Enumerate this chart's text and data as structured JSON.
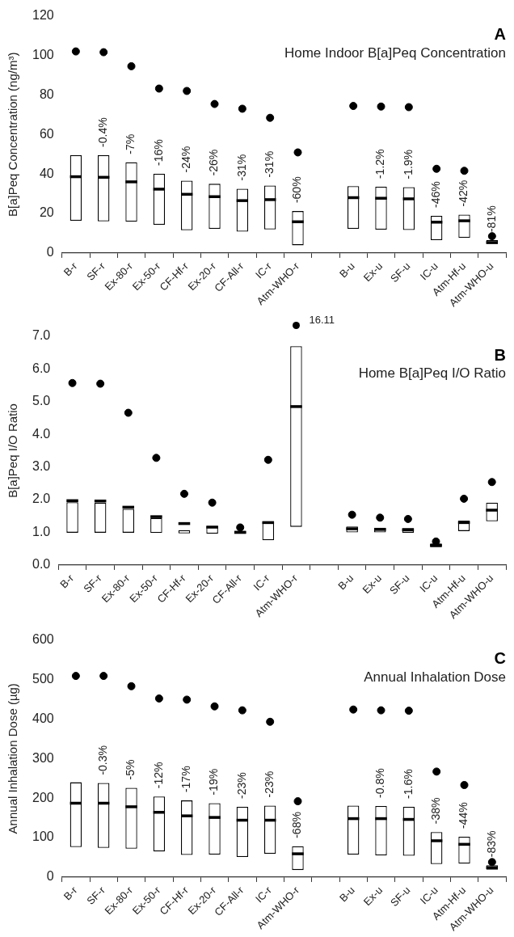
{
  "chart_data": [
    {
      "type": "box",
      "title": "A",
      "subtitle": "Home Indoor B[a]Peq Concentration",
      "ylabel": "B[a]Peq Concentration (ng/m³)",
      "categories": [
        "B-r",
        "SF-r",
        "Ex-80-r",
        "Ex-50-r",
        "CF-Hf-r",
        "Ex-20-r",
        "CF-All-r",
        "IC-r",
        "Atm-WHO-r",
        null,
        "B-u",
        "Ex-u",
        "SF-u",
        "IC-u",
        "Atm-Hf-u",
        "Atm-WHO-u"
      ],
      "ylim": [
        0,
        120
      ],
      "yticks": [
        0,
        20,
        40,
        60,
        80,
        100,
        120
      ],
      "grid": false,
      "legend": false,
      "series": [
        {
          "type": "box",
          "color": "#000000",
          "boxes": [
            {
              "low": 16.3,
              "q1": 16.3,
              "median": 38.6,
              "q3": 49.5,
              "high": 49.5
            },
            {
              "low": 16,
              "q1": 16,
              "median": 38.3,
              "q3": 49.5,
              "high": 49.5
            },
            {
              "low": 15.8,
              "q1": 15.8,
              "median": 36,
              "q3": 45.9,
              "high": 45.9
            },
            {
              "low": 14.3,
              "q1": 14.3,
              "median": 32.3,
              "q3": 40.1,
              "high": 40.1
            },
            {
              "low": 11.5,
              "q1": 11.5,
              "median": 29.7,
              "q3": 36.6,
              "high": 36.6
            },
            {
              "low": 12.2,
              "q1": 12.2,
              "median": 28.5,
              "q3": 35,
              "high": 35
            },
            {
              "low": 10.8,
              "q1": 10.8,
              "median": 26.5,
              "q3": 32.5,
              "high": 32.5
            },
            {
              "low": 11.9,
              "q1": 11.9,
              "median": 27,
              "q3": 34.1,
              "high": 34.1
            },
            {
              "low": 3.9,
              "q1": 3.9,
              "median": 15.8,
              "q3": 21.2,
              "high": 21.2
            },
            null,
            {
              "low": 12.2,
              "q1": 12.2,
              "median": 28,
              "q3": 33.8,
              "high": 33.8
            },
            {
              "low": 11.8,
              "q1": 11.8,
              "median": 27.7,
              "q3": 33.5,
              "high": 33.5
            },
            {
              "low": 11.6,
              "q1": 11.6,
              "median": 27.4,
              "q3": 33.3,
              "high": 33.3
            },
            {
              "low": 6.5,
              "q1": 6.5,
              "median": 15.6,
              "q3": 18.8,
              "high": 18.8
            },
            {
              "low": 7.6,
              "q1": 7.6,
              "median": 16.3,
              "q3": 19.4,
              "high": 19.4
            },
            {
              "low": 4.6,
              "q1": 4.6,
              "median": 5.3,
              "q3": 6.5,
              "high": 6.5
            }
          ],
          "value_labels": [
            null,
            "-0.4%",
            "-7%",
            "-16%",
            "-24%",
            "-26%",
            "-31%",
            "-31%",
            "-60%",
            null,
            null,
            "-1.2%",
            "-1.9%",
            "-46%",
            "-42%",
            "-81%"
          ]
        },
        {
          "type": "scatter",
          "color": "#000000",
          "marker": "circle",
          "x": [
            "B-r",
            "SF-r",
            "Ex-80-r",
            "Ex-50-r",
            "CF-Hf-r",
            "Ex-20-r",
            "CF-All-r",
            "IC-r",
            "Atm-WHO-r",
            null,
            "B-u",
            "Ex-u",
            "SF-u",
            "IC-u",
            "Atm-Hf-u",
            "Atm-WHO-u"
          ],
          "values": [
            102,
            101.6,
            94.5,
            83.2,
            82,
            75.4,
            73,
            68.4,
            50.9,
            null,
            74.4,
            74.1,
            73.8,
            42.6,
            41.6,
            8.5
          ]
        }
      ]
    },
    {
      "type": "box",
      "title": "B",
      "subtitle": "Home B[a]Peq I/O Ratio",
      "ylabel": "B[a]Peq I/O Ratio",
      "categories": [
        "B-r",
        "SF-r",
        "Ex-80-r",
        "Ex-50-r",
        "CF-Hf-r",
        "Ex-20-r",
        "CF-All-r",
        "IC-r",
        "Atm-WHO-r",
        null,
        "B-u",
        "Ex-u",
        "SF-u",
        "IC-u",
        "Atm-Hf-u",
        "Atm-WHO-u"
      ],
      "ylim": [
        0,
        7
      ],
      "yticks": [
        {
          "value": 0,
          "label": "0.0"
        },
        {
          "value": 1,
          "label": "1.0"
        },
        {
          "value": 2,
          "label": "2.0"
        },
        {
          "value": 3,
          "label": "3.0"
        },
        {
          "value": 4,
          "label": "4.0"
        },
        {
          "value": 5,
          "label": "5.0"
        },
        {
          "value": 6,
          "label": "6.0"
        },
        {
          "value": 7,
          "label": "7.0"
        }
      ],
      "grid": false,
      "legend": false,
      "series": [
        {
          "type": "box",
          "color": "#000000",
          "boxes": [
            {
              "low": 0.99,
              "q1": 0.99,
              "median": 1.97,
              "q3": 1.92,
              "high": 1.92
            },
            {
              "low": 0.99,
              "q1": 0.99,
              "median": 1.96,
              "q3": 1.91,
              "high": 1.91
            },
            {
              "low": 0.99,
              "q1": 0.99,
              "median": 1.77,
              "q3": 1.72,
              "high": 1.72
            },
            {
              "low": 0.98,
              "q1": 0.98,
              "median": 1.48,
              "q3": 1.44,
              "high": 1.44
            },
            {
              "low": 0.97,
              "q1": 0.97,
              "median": 1.27,
              "q3": 1.07,
              "high": 1.07
            },
            {
              "low": 0.96,
              "q1": 0.96,
              "median": 1.16,
              "q3": 1.2,
              "high": 1.2
            },
            {
              "low": 0.96,
              "q1": 0.96,
              "median": 1.0,
              "q3": 1.05,
              "high": 1.05
            },
            {
              "low": 0.76,
              "q1": 0.76,
              "median": 1.3,
              "q3": 1.33,
              "high": 1.33
            },
            {
              "low": 1.17,
              "q1": 1.17,
              "median": 4.85,
              "q3": 6.7,
              "high": 6.7
            },
            null,
            {
              "low": 1.0,
              "q1": 1.0,
              "median": 1.11,
              "q3": 1.18,
              "high": 1.18
            },
            {
              "low": 1.0,
              "q1": 1.0,
              "median": 1.09,
              "q3": 1.14,
              "high": 1.14
            },
            {
              "low": 0.99,
              "q1": 0.99,
              "median": 1.08,
              "q3": 1.13,
              "high": 1.13
            },
            {
              "low": 0.55,
              "q1": 0.55,
              "median": 0.6,
              "q3": 0.66,
              "high": 0.66
            },
            {
              "low": 1.04,
              "q1": 1.04,
              "median": 1.3,
              "q3": 1.36,
              "high": 1.36
            },
            {
              "low": 1.34,
              "q1": 1.34,
              "median": 1.68,
              "q3": 1.91,
              "high": 1.91
            }
          ]
        },
        {
          "type": "scatter",
          "color": "#000000",
          "marker": "circle",
          "x": [
            "B-r",
            "SF-r",
            "Ex-80-r",
            "Ex-50-r",
            "CF-Hf-r",
            "Ex-20-r",
            "CF-All-r",
            "IC-r",
            "Atm-WHO-r",
            null,
            "B-u",
            "Ex-u",
            "SF-u",
            "IC-u",
            "Atm-Hf-u",
            "Atm-WHO-u"
          ],
          "values": [
            5.57,
            5.55,
            4.66,
            3.28,
            2.18,
            1.91,
            1.15,
            3.22,
            null,
            null,
            1.54,
            1.45,
            1.41,
            0.72,
            2.03,
            2.54
          ]
        }
      ],
      "annotations": [
        "16.11"
      ]
    },
    {
      "type": "box",
      "title": "C",
      "subtitle": "Annual Inhalation Dose",
      "ylabel": "Annual Inhalation Dose (µg)",
      "categories": [
        "B-r",
        "SF-r",
        "Ex-80-r",
        "Ex-50-r",
        "CF-Hf-r",
        "Ex-20-r",
        "CF-All-r",
        "IC-r",
        "Atm-WHO-r",
        null,
        "B-u",
        "Ex-u",
        "SF-u",
        "IC-u",
        "Atm-Hf-u",
        "Atm-WHO-u"
      ],
      "ylim": [
        0,
        600
      ],
      "yticks": [
        0,
        100,
        200,
        300,
        400,
        500,
        600
      ],
      "grid": false,
      "legend": false,
      "series": [
        {
          "type": "box",
          "color": "#000000",
          "boxes": [
            {
              "low": 76,
              "q1": 76,
              "median": 187,
              "q3": 240,
              "high": 240
            },
            {
              "low": 74,
              "q1": 74,
              "median": 187,
              "q3": 238,
              "high": 238
            },
            {
              "low": 72,
              "q1": 72,
              "median": 178,
              "q3": 226,
              "high": 226
            },
            {
              "low": 65,
              "q1": 65,
              "median": 164,
              "q3": 204,
              "high": 204
            },
            {
              "low": 56,
              "q1": 56,
              "median": 155,
              "q3": 194,
              "high": 194
            },
            {
              "low": 57,
              "q1": 57,
              "median": 151,
              "q3": 187,
              "high": 187
            },
            {
              "low": 51,
              "q1": 51,
              "median": 144,
              "q3": 178,
              "high": 178
            },
            {
              "low": 59,
              "q1": 59,
              "median": 144,
              "q3": 181,
              "high": 181
            },
            {
              "low": 18,
              "q1": 18,
              "median": 59,
              "q3": 78,
              "high": 78
            },
            null,
            {
              "low": 57,
              "q1": 57,
              "median": 148,
              "q3": 181,
              "high": 181
            },
            {
              "low": 55,
              "q1": 55,
              "median": 148,
              "q3": 180,
              "high": 180
            },
            {
              "low": 54,
              "q1": 54,
              "median": 146,
              "q3": 178,
              "high": 178
            },
            {
              "low": 33,
              "q1": 33,
              "median": 92,
              "q3": 114,
              "high": 114
            },
            {
              "low": 34,
              "q1": 34,
              "median": 83,
              "q3": 102,
              "high": 102
            },
            {
              "low": 19,
              "q1": 19,
              "median": 24,
              "q3": 30,
              "high": 30
            }
          ],
          "value_labels": [
            null,
            "-0.3%",
            "-5%",
            "-12%",
            "-17%",
            "-19%",
            "-23%",
            "-23%",
            "-68%",
            null,
            null,
            "-0.8%",
            "-1.6%",
            "-38%",
            "-44%",
            "-83%"
          ]
        },
        {
          "type": "scatter",
          "color": "#000000",
          "marker": "circle",
          "x": [
            "B-r",
            "SF-r",
            "Ex-80-r",
            "Ex-50-r",
            "CF-Hf-r",
            "Ex-20-r",
            "CF-All-r",
            "IC-r",
            "Atm-WHO-r",
            null,
            "B-u",
            "Ex-u",
            "SF-u",
            "IC-u",
            "Atm-Hf-u",
            "Atm-WHO-u"
          ],
          "values": [
            509,
            509,
            483,
            452,
            449,
            432,
            422,
            393,
            192,
            null,
            424,
            422,
            421,
            267,
            233,
            38
          ]
        }
      ]
    }
  ]
}
